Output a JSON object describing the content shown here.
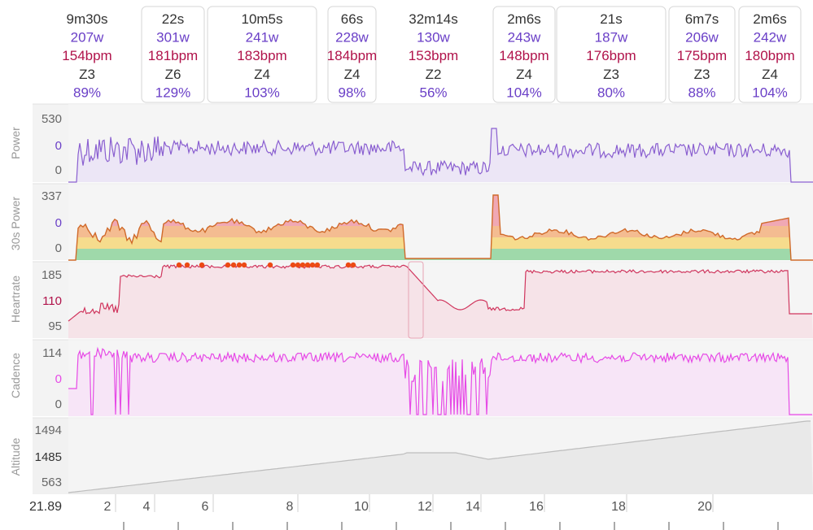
{
  "colors": {
    "power": "#8a5fd0",
    "power_fill": "#ece6f6",
    "hr": "#d0365e",
    "hr_fill": "#f6e3e8",
    "cadence": "#e64ae6",
    "cadence_fill": "#f7e5f7",
    "altitude": "#bdbdbd",
    "altitude_fill": "#e9e9e9",
    "hr_marker": "#ec4a14",
    "label_duration": "#333333",
    "label_watts": "#6a3fc7",
    "label_bpm": "#b0124a",
    "label_zone": "#333333",
    "label_pct": "#6a3fc7",
    "axis_text": "#666666",
    "zone_green": "#8fd39c",
    "zone_yellow": "#f6d77a",
    "zone_orange": "#f3b27f",
    "zone_red": "#ef9aa8"
  },
  "intervals": [
    {
      "duration": "9m30s",
      "watts": "207w",
      "bpm": "154bpm",
      "zone": "Z3",
      "pct": "89%",
      "boxed": false
    },
    {
      "duration": "22s",
      "watts": "301w",
      "bpm": "181bpm",
      "zone": "Z6",
      "pct": "129%",
      "boxed": true
    },
    {
      "duration": "10m5s",
      "watts": "241w",
      "bpm": "183bpm",
      "zone": "Z4",
      "pct": "103%",
      "boxed": true
    },
    {
      "duration": "66s",
      "watts": "228w",
      "bpm": "184bpm",
      "zone": "Z4",
      "pct": "98%",
      "boxed": true
    },
    {
      "duration": "32m14s",
      "watts": "130w",
      "bpm": "153bpm",
      "zone": "Z2",
      "pct": "56%",
      "boxed": false
    },
    {
      "duration": "2m6s",
      "watts": "243w",
      "bpm": "148bpm",
      "zone": "Z4",
      "pct": "104%",
      "boxed": true
    },
    {
      "duration": "21s",
      "watts": "187w",
      "bpm": "176bpm",
      "zone": "Z3",
      "pct": "80%",
      "boxed": true
    },
    {
      "duration": "6m7s",
      "watts": "206w",
      "bpm": "175bpm",
      "zone": "Z3",
      "pct": "88%",
      "boxed": true
    },
    {
      "duration": "2m6s",
      "watts": "242w",
      "bpm": "180bpm",
      "zone": "Z4",
      "pct": "104%",
      "boxed": true
    }
  ],
  "chart_data": {
    "type": "line",
    "x_ticks": [
      "2",
      "4",
      "6",
      "8",
      "10",
      "12",
      "14",
      "16",
      "18",
      "20"
    ],
    "x_start_label": "21.89",
    "panels": [
      {
        "name": "Power",
        "ticks": [
          "530",
          "0",
          "0"
        ]
      },
      {
        "name": "30s Power",
        "ticks": [
          "337",
          "0",
          "0"
        ]
      },
      {
        "name": "Heartrate",
        "ticks": [
          "185",
          "110",
          "95"
        ]
      },
      {
        "name": "Cadence",
        "ticks": [
          "114",
          "0",
          "0"
        ]
      },
      {
        "name": "Altitude",
        "ticks": [
          "1494",
          "1485",
          "563"
        ]
      }
    ]
  }
}
